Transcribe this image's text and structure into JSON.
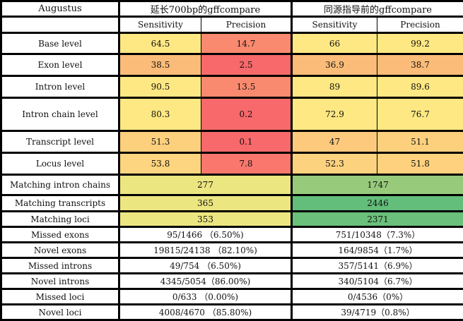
{
  "header": {
    "corner": "Augustus",
    "group1": "延长700bp的gffcompare",
    "group2": "同源指导前的gffcompare"
  },
  "subheader": {
    "s1": "Sensitivity",
    "p1": "Precision",
    "s2": "Sensitivity",
    "p2": "Precision"
  },
  "levels": [
    {
      "label": "Base level",
      "cells": [
        {
          "v": "64.5",
          "c": "#fee883"
        },
        {
          "v": "14.7",
          "c": "#f98a6f"
        },
        {
          "v": "66",
          "c": "#fee883"
        },
        {
          "v": "99.2",
          "c": "#fee883"
        }
      ]
    },
    {
      "label": "Exon level",
      "cells": [
        {
          "v": "38.5",
          "c": "#fbbc79"
        },
        {
          "v": "2.5",
          "c": "#f8696b"
        },
        {
          "v": "36.9",
          "c": "#fbbc79"
        },
        {
          "v": "38.7",
          "c": "#fbbc79"
        }
      ]
    },
    {
      "label": "Intron level",
      "cells": [
        {
          "v": "90.5",
          "c": "#fee883"
        },
        {
          "v": "13.5",
          "c": "#f98a6f"
        },
        {
          "v": "89",
          "c": "#fee883"
        },
        {
          "v": "89.6",
          "c": "#fee883"
        }
      ]
    },
    {
      "label": "Intron chain level",
      "cells": [
        {
          "v": "80.3",
          "c": "#fee883"
        },
        {
          "v": "0.2",
          "c": "#f8696b"
        },
        {
          "v": "72.9",
          "c": "#fee883"
        },
        {
          "v": "76.7",
          "c": "#fee883"
        }
      ]
    },
    {
      "label": "Transcript level",
      "cells": [
        {
          "v": "51.3",
          "c": "#fdd07e"
        },
        {
          "v": "0.1",
          "c": "#f8696b"
        },
        {
          "v": "47",
          "c": "#fdca7d"
        },
        {
          "v": "51.1",
          "c": "#fdd07e"
        }
      ]
    },
    {
      "label": "Locus level",
      "cells": [
        {
          "v": "53.8",
          "c": "#fdd47f"
        },
        {
          "v": "7.8",
          "c": "#f9776d"
        },
        {
          "v": "52.3",
          "c": "#fdd27f"
        },
        {
          "v": "51.8",
          "c": "#fdd17e"
        }
      ]
    }
  ],
  "matching": [
    {
      "label": "Matching intron chains",
      "v1": "277",
      "c1": "#ece680",
      "v2": "1747",
      "c2": "#97cb7b"
    },
    {
      "label": "Matching transcripts",
      "v1": "365",
      "c1": "#ece680",
      "v2": "2446",
      "c2": "#63be7b"
    },
    {
      "label": "Matching loci",
      "v1": "353",
      "c1": "#ece680",
      "v2": "2371",
      "c2": "#6bc07b"
    }
  ],
  "counts": [
    {
      "label": "Missed exons",
      "v1": "95/1466 （6.50%)",
      "v2": "751/10348（7.3%）"
    },
    {
      "label": "Novel exons",
      "v1": "19815/24138 （82.10%)",
      "v2": "164/9854（1.7%）"
    },
    {
      "label": "Missed introns",
      "v1": "49/754 （6.50%)",
      "v2": "357/5141（6.9%）"
    },
    {
      "label": "Novel introns",
      "v1": "4345/5054（86.00%)",
      "v2": "340/5104（6.7%）"
    },
    {
      "label": "Missed loci",
      "v1": "0/633 （0.00%)",
      "v2": "0/4536（0%）"
    },
    {
      "label": "Novel loci",
      "v1": "4008/4670 （85.80%)",
      "v2": "39/4719（0.8%）"
    }
  ]
}
